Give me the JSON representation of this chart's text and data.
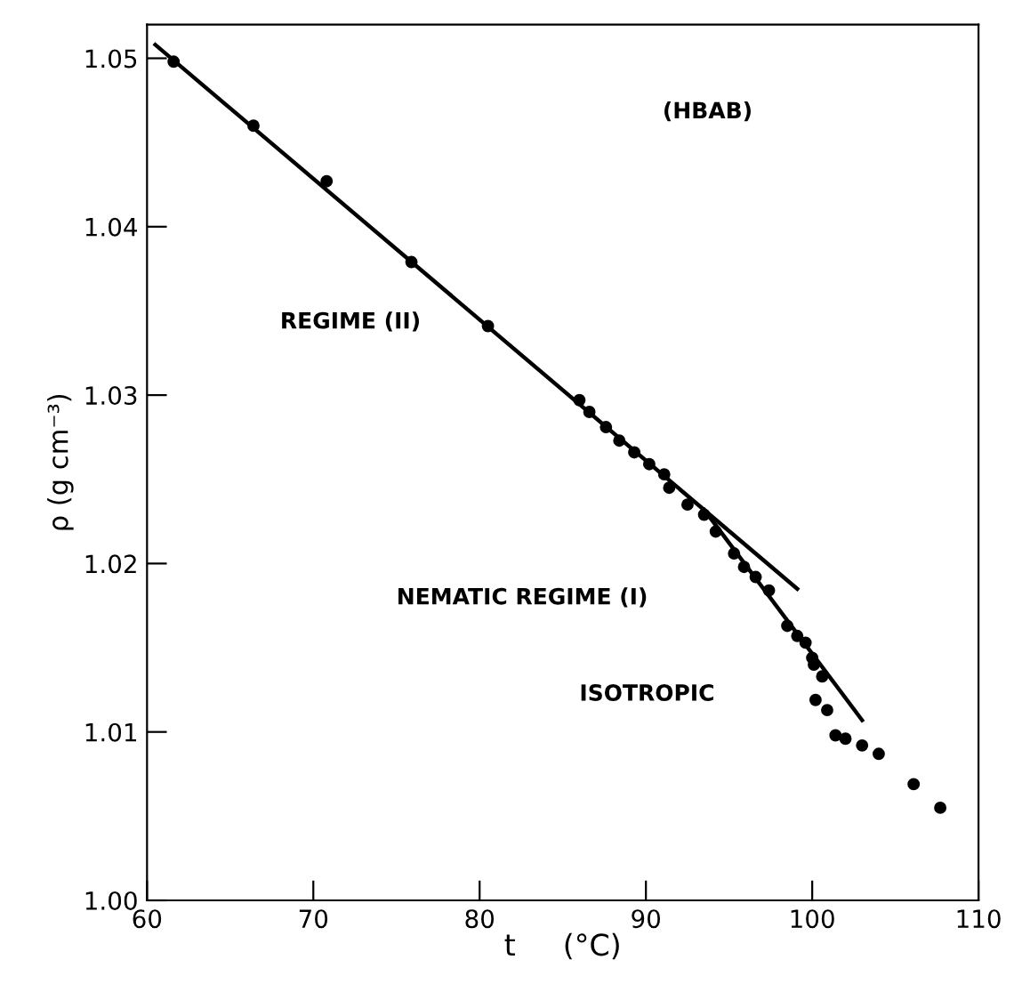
{
  "chart_data": {
    "type": "scatter",
    "xlabel": "t     (°C)",
    "ylabel": "ρ (g cm⁻³)",
    "xlim": [
      60,
      110
    ],
    "ylim": [
      1.0,
      1.052
    ],
    "xticks": [
      60,
      70,
      80,
      90,
      100,
      110
    ],
    "yticks": [
      {
        "value": 1.0,
        "label": "1.00"
      },
      {
        "value": 1.01,
        "label": "1.01"
      },
      {
        "value": 1.02,
        "label": "1.02"
      },
      {
        "value": 1.03,
        "label": "1.03"
      },
      {
        "value": 1.04,
        "label": "1.04"
      },
      {
        "value": 1.05,
        "label": "1.05"
      }
    ],
    "grid": false,
    "series": [
      {
        "marker": "circle",
        "color": "#000000",
        "x": [
          61.6,
          66.4,
          70.8,
          75.9,
          80.5,
          86.0,
          86.6,
          87.6,
          88.4,
          89.3,
          90.2,
          91.1,
          91.4,
          92.5,
          93.5,
          94.2,
          95.3,
          95.9,
          96.6,
          97.4,
          98.5,
          99.1,
          99.6,
          100.0,
          100.1,
          100.6,
          100.2,
          100.9,
          101.4,
          102.0,
          103.0,
          104.0,
          106.1,
          107.7
        ],
        "values": [
          1.0498,
          1.046,
          1.0427,
          1.0379,
          1.0341,
          1.0297,
          1.029,
          1.0281,
          1.0273,
          1.0266,
          1.0259,
          1.0253,
          1.0245,
          1.0235,
          1.0229,
          1.0219,
          1.0206,
          1.0198,
          1.0192,
          1.0184,
          1.0163,
          1.0157,
          1.0153,
          1.0144,
          1.014,
          1.0133,
          1.0119,
          1.0113,
          1.0098,
          1.0096,
          1.0092,
          1.0087,
          1.0069,
          1.0055
        ]
      },
      {
        "type": "line",
        "color": "#000000",
        "x": [
          60.5,
          99.1
        ],
        "values": [
          1.0508,
          1.0185
        ]
      },
      {
        "type": "line",
        "color": "#000000",
        "x": [
          93.5,
          103.0
        ],
        "values": [
          1.0232,
          1.0107
        ]
      }
    ],
    "annotations": [
      "(HBAB)",
      "REGIME (II)",
      "NEMATIC REGIME (I)",
      "ISOTROPIC"
    ]
  }
}
